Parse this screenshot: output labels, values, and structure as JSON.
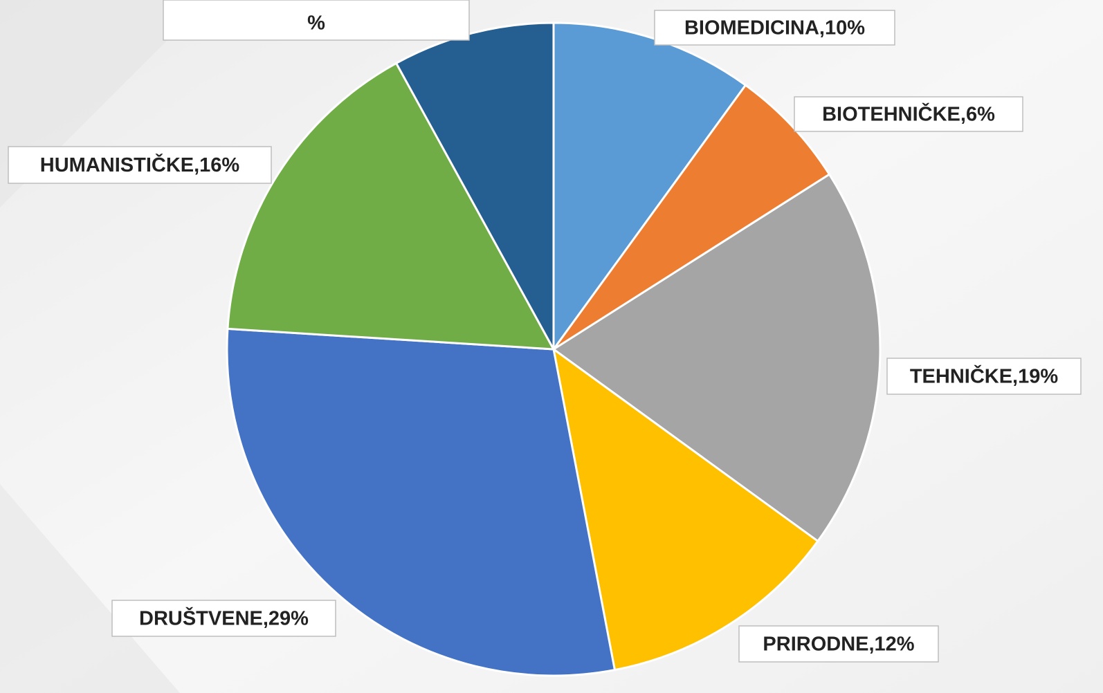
{
  "chart_data": {
    "type": "pie",
    "labels": [
      "BIOMEDICINA,10%",
      "BIOTEHNIČKE,6%",
      "TEHNIČKE,19%",
      "PRIRODNE,12%",
      "DRUŠTVENE,29%",
      "HUMANISTIČKE,16%",
      "%"
    ],
    "values": [
      10,
      6,
      19,
      12,
      29,
      16,
      8
    ],
    "colors": [
      "#5b9bd5",
      "#ed7d31",
      "#a5a5a5",
      "#ffc000",
      "#4472c4",
      "#70ad47",
      "#255e91"
    ]
  }
}
